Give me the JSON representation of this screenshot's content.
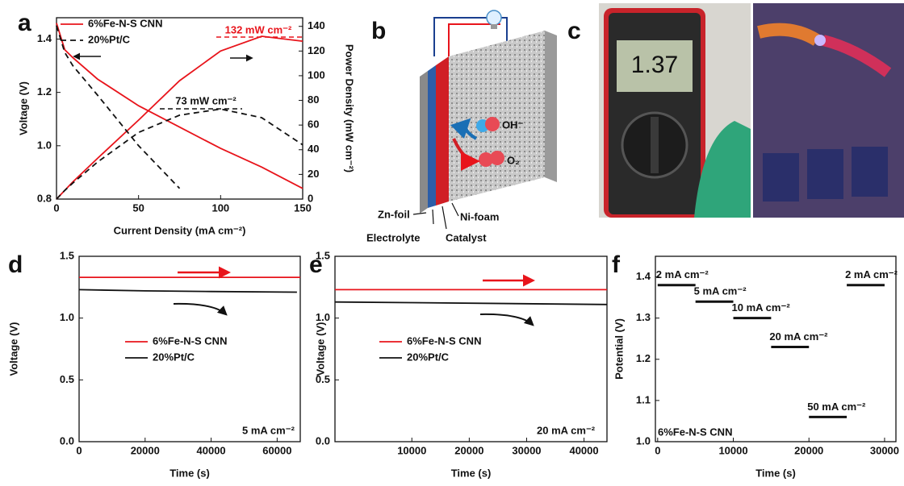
{
  "panel_b": {
    "label": "b",
    "oh": "OH⁻",
    "o2": "O₂",
    "zn": "Zn-foil",
    "electrolyte": "Electrolyte",
    "catalyst": "Catalyst",
    "ni": "Ni-foam"
  },
  "panel_c": {
    "label": "c",
    "display": "1.37"
  },
  "chart_data": [
    {
      "type": "line",
      "label": "a",
      "xlabel": "Current Density (mA cm⁻²)",
      "ylabel": "Voltage (V)",
      "y2label": "Power Density (mW cm⁻²)",
      "xlim": [
        0,
        150
      ],
      "xticks": [
        0,
        50,
        100,
        150
      ],
      "ylim": [
        0.8,
        1.48
      ],
      "yticks": [
        0.8,
        {
          "value": 1,
          "label": "1.0"
        },
        1.2,
        1.4
      ],
      "y2lim": [
        0,
        147
      ],
      "y2ticks": [
        0,
        20,
        40,
        60,
        80,
        100,
        120,
        140
      ],
      "legend": "upper left",
      "annotations": [
        "132 mW cm⁻²",
        "73 mW cm⁻²"
      ],
      "series": [
        {
          "name": "6%Fe-N-S CNN",
          "color": "#e8141b",
          "style": "solid",
          "x": [
            0,
            5,
            10,
            25,
            50,
            75,
            100,
            125,
            150
          ],
          "values": [
            1.46,
            1.36,
            1.33,
            1.25,
            1.15,
            1.07,
            0.99,
            0.92,
            0.84
          ],
          "power": [
            0,
            7,
            14,
            33,
            64,
            96,
            120,
            132,
            128
          ]
        },
        {
          "name": "20%Pt/C",
          "color": "#111111",
          "style": "dashed",
          "x": [
            0,
            5,
            10,
            25,
            50,
            75,
            100,
            125,
            150
          ],
          "values": [
            1.45,
            1.35,
            1.3,
            1.19,
            1.0,
            0.84,
            null,
            null,
            null
          ],
          "power": [
            0,
            7,
            13,
            30,
            54,
            68,
            73,
            66,
            44
          ]
        }
      ]
    },
    {
      "type": "line",
      "label": "d",
      "xlabel": "Time (s)",
      "ylabel": "Voltage (V)",
      "xlim": [
        0,
        67000
      ],
      "xticks": [
        0,
        20000,
        40000,
        60000
      ],
      "ylim": [
        0,
        1.5
      ],
      "yticks": [
        {
          "value": 0,
          "label": "0.0"
        },
        0.5,
        {
          "value": 1,
          "label": "1.0"
        },
        1.5
      ],
      "note": "5 mA cm⁻²",
      "series": [
        {
          "name": "6%Fe-N-S CNN",
          "color": "#e8141b",
          "style": "solid",
          "x": [
            0,
            67000
          ],
          "values": [
            1.33,
            1.33
          ]
        },
        {
          "name": "20%Pt/C",
          "color": "#111111",
          "style": "solid",
          "x": [
            0,
            20000,
            40000,
            66000
          ],
          "values": [
            1.23,
            1.22,
            1.215,
            1.21
          ]
        }
      ]
    },
    {
      "type": "line",
      "label": "e",
      "xlabel": "Time (s)",
      "ylabel": "Voltage (V)",
      "xlim": [
        -3400,
        44000
      ],
      "xticks": [
        10000,
        20000,
        30000,
        40000
      ],
      "ylim": [
        0,
        1.5
      ],
      "yticks": [
        {
          "value": 0,
          "label": "0.0"
        },
        0.5,
        {
          "value": 1,
          "label": "1.0"
        },
        1.5
      ],
      "note": "20 mA cm⁻²",
      "series": [
        {
          "name": "6%Fe-N-S CNN",
          "color": "#e8141b",
          "style": "solid",
          "x": [
            -3400,
            44000
          ],
          "values": [
            1.23,
            1.23
          ]
        },
        {
          "name": "20%Pt/C",
          "color": "#111111",
          "style": "solid",
          "x": [
            -3400,
            10000,
            44000
          ],
          "values": [
            1.13,
            1.125,
            1.11
          ]
        }
      ]
    },
    {
      "type": "segments",
      "label": "f",
      "xlabel": "Time (s)",
      "ylabel": "Potential (V)",
      "xlim": [
        -300,
        31500
      ],
      "xticks": [
        0,
        10000,
        20000,
        30000
      ],
      "ylim": [
        1.0,
        1.45
      ],
      "yticks": [
        {
          "value": 1,
          "label": "1.0"
        },
        1.1,
        1.2,
        1.3,
        1.4
      ],
      "note": "6%Fe-N-S CNN",
      "color": "#111111",
      "segments": [
        {
          "label": "2 mA cm⁻²",
          "x": [
            0,
            5000
          ],
          "value": 1.38
        },
        {
          "label": "5 mA cm⁻²",
          "x": [
            5000,
            10000
          ],
          "value": 1.34
        },
        {
          "label": "10 mA cm⁻²",
          "x": [
            10000,
            15000
          ],
          "value": 1.3
        },
        {
          "label": "20 mA cm⁻²",
          "x": [
            15000,
            20000
          ],
          "value": 1.23
        },
        {
          "label": "50 mA cm⁻²",
          "x": [
            20000,
            25000
          ],
          "value": 1.06
        },
        {
          "label": "2 mA cm⁻²",
          "x": [
            25000,
            30000
          ],
          "value": 1.38
        }
      ]
    }
  ]
}
